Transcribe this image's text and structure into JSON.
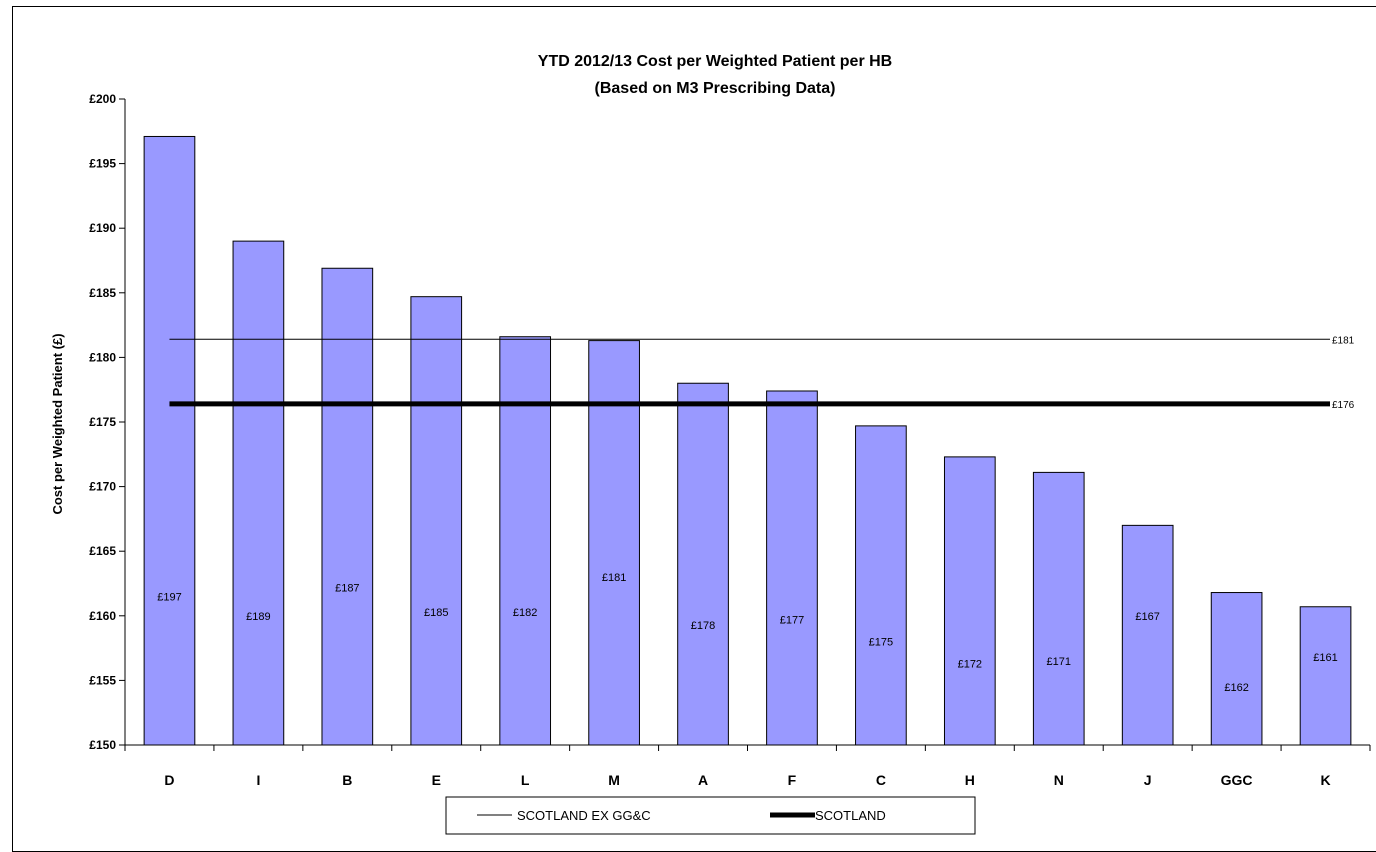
{
  "chart_data": {
    "type": "bar",
    "title": "YTD 2012/13 Cost per Weighted Patient per HB",
    "subtitle": "(Based on M3 Prescribing Data)",
    "ylabel": "Cost per Weighted Patient (£)",
    "xlabel": "",
    "ylim": [
      150,
      200
    ],
    "ytick_step": 5,
    "ytick_labels": [
      "£150",
      "£155",
      "£160",
      "£165",
      "£170",
      "£175",
      "£180",
      "£185",
      "£190",
      "£195",
      "£200"
    ],
    "categories": [
      "D",
      "I",
      "B",
      "E",
      "L",
      "M",
      "A",
      "F",
      "C",
      "H",
      "N",
      "J",
      "GGC",
      "K"
    ],
    "values": [
      197.1,
      189.0,
      186.9,
      184.7,
      181.6,
      181.3,
      178.0,
      177.4,
      174.7,
      172.3,
      171.1,
      167.0,
      161.8,
      160.7
    ],
    "data_labels": [
      "£197",
      "£189",
      "£187",
      "£185",
      "£182",
      "£181",
      "£178",
      "£177",
      "£175",
      "£172",
      "£171",
      "£167",
      "£162",
      "£161"
    ],
    "bar_color": "#9999ff",
    "grid": false,
    "reference_lines": [
      {
        "name": "SCOTLAND EX GG&C",
        "value": 181.4,
        "label": "£181",
        "style": "thin"
      },
      {
        "name": "SCOTLAND",
        "value": 176.4,
        "label": "£176",
        "style": "thick"
      }
    ],
    "legend": {
      "position": "bottom-center",
      "entries": [
        "SCOTLAND EX GG&C",
        "SCOTLAND"
      ]
    }
  }
}
